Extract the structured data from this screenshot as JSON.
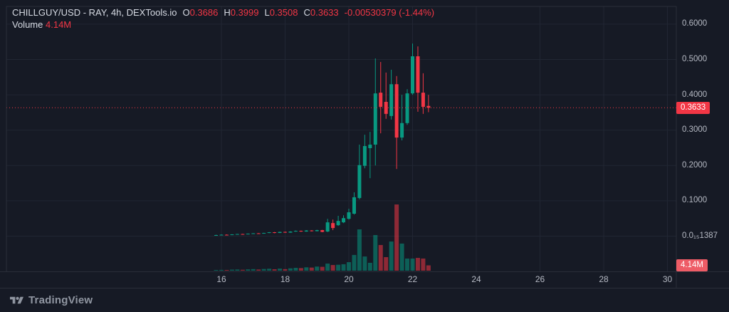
{
  "header": {
    "title": "CHILLGUY/USD - RAY, 4h, DEXTools.io",
    "ohlc": [
      {
        "label": "O",
        "value": "0.3686"
      },
      {
        "label": "H",
        "value": "0.3999"
      },
      {
        "label": "L",
        "value": "0.3508"
      },
      {
        "label": "C",
        "value": "0.3633"
      }
    ],
    "change": "-0.00530379 (-1.44%)",
    "volume_label": "Volume",
    "volume_value": "4.14M"
  },
  "badges": {
    "price": "0.3633",
    "volume": "4.14M"
  },
  "footer": {
    "brand": "TradingView",
    "logo_icon": "tradingview-logo"
  },
  "colors": {
    "background": "#161a25",
    "grid": "#212633",
    "border": "#2a2e39",
    "axis_text": "#b6bac4",
    "up": "#089981",
    "down": "#f23645",
    "dotted_line": "#f23645",
    "price_badge_bg": "#f23645",
    "volume_badge_bg": "#ee5c66"
  },
  "chart_data": {
    "type": "candlestick",
    "title": "CHILLGUY/USD - RAY, 4h, DEXTools.io",
    "x_unit": "day of month (November), 4h candles",
    "price_line": 0.3633,
    "last_volume_m": 4.14,
    "x_range_days": [
      15.8,
      30.3
    ],
    "y_range_price": [
      0,
      0.62
    ],
    "grid": "on",
    "price_axis_ticks": [
      {
        "value": 0.6,
        "label": "0.6000"
      },
      {
        "value": 0.5,
        "label": "0.5000"
      },
      {
        "value": 0.4,
        "label": "0.4000"
      },
      {
        "value": 0.3,
        "label": "0.3000"
      },
      {
        "value": 0.2,
        "label": "0.2000"
      },
      {
        "value": 0.1,
        "label": "0.1000"
      },
      {
        "value": 0.0,
        "label": "0.0₁₅1387"
      }
    ],
    "time_axis_ticks": [
      {
        "day": 16,
        "label": "16"
      },
      {
        "day": 18,
        "label": "18"
      },
      {
        "day": 20,
        "label": "20"
      },
      {
        "day": 22,
        "label": "22"
      },
      {
        "day": 24,
        "label": "24"
      },
      {
        "day": 26,
        "label": "26"
      },
      {
        "day": 28,
        "label": "28"
      },
      {
        "day": 30,
        "label": "30"
      }
    ],
    "candles_format": [
      "t_day",
      "open",
      "high",
      "low",
      "close",
      "volume_millions"
    ],
    "candles": [
      [
        15.833,
        0.002,
        0.004,
        0.001,
        0.003,
        0.3
      ],
      [
        16.0,
        0.003,
        0.005,
        0.002,
        0.004,
        0.6
      ],
      [
        16.167,
        0.004,
        0.005,
        0.0025,
        0.003,
        0.5
      ],
      [
        16.333,
        0.003,
        0.0055,
        0.0028,
        0.005,
        0.8
      ],
      [
        16.5,
        0.005,
        0.0065,
        0.0045,
        0.006,
        0.9
      ],
      [
        16.667,
        0.006,
        0.0068,
        0.0045,
        0.005,
        0.7
      ],
      [
        16.833,
        0.005,
        0.0075,
        0.0048,
        0.007,
        1.0
      ],
      [
        17.0,
        0.007,
        0.0085,
        0.0065,
        0.008,
        1.2
      ],
      [
        17.167,
        0.008,
        0.0088,
        0.0062,
        0.007,
        0.9
      ],
      [
        17.333,
        0.007,
        0.0095,
        0.0068,
        0.009,
        1.3
      ],
      [
        17.5,
        0.009,
        0.0115,
        0.0085,
        0.011,
        1.5
      ],
      [
        17.667,
        0.011,
        0.0118,
        0.0082,
        0.009,
        1.1
      ],
      [
        17.833,
        0.009,
        0.0125,
        0.0088,
        0.012,
        1.6
      ],
      [
        18.0,
        0.012,
        0.0128,
        0.0092,
        0.01,
        1.2
      ],
      [
        18.167,
        0.01,
        0.0138,
        0.0095,
        0.013,
        1.8
      ],
      [
        18.333,
        0.013,
        0.016,
        0.0125,
        0.015,
        2.2
      ],
      [
        18.5,
        0.015,
        0.0158,
        0.0122,
        0.013,
        2.0
      ],
      [
        18.667,
        0.013,
        0.017,
        0.0125,
        0.016,
        2.6
      ],
      [
        18.833,
        0.016,
        0.0168,
        0.0132,
        0.014,
        2.4
      ],
      [
        19.0,
        0.014,
        0.018,
        0.0135,
        0.017,
        3.2
      ],
      [
        19.167,
        0.017,
        0.0178,
        0.011,
        0.012,
        3.0
      ],
      [
        19.333,
        0.013,
        0.049,
        0.0115,
        0.039,
        5.5
      ],
      [
        19.5,
        0.037,
        0.047,
        0.017,
        0.023,
        4.4
      ],
      [
        19.667,
        0.031,
        0.0575,
        0.029,
        0.043,
        4.6
      ],
      [
        19.833,
        0.039,
        0.059,
        0.037,
        0.051,
        5.0
      ],
      [
        20.0,
        0.049,
        0.0776,
        0.047,
        0.0675,
        6.6
      ],
      [
        20.167,
        0.0635,
        0.124,
        0.061,
        0.11,
        12.2
      ],
      [
        20.333,
        0.108,
        0.259,
        0.104,
        0.201,
        32.0
      ],
      [
        20.5,
        0.199,
        0.287,
        0.192,
        0.255,
        11.0
      ],
      [
        20.667,
        0.249,
        0.295,
        0.164,
        0.259,
        6.1
      ],
      [
        20.833,
        0.259,
        0.503,
        0.2,
        0.404,
        27.6
      ],
      [
        21.0,
        0.406,
        0.493,
        0.291,
        0.366,
        19.9
      ],
      [
        21.167,
        0.38,
        0.463,
        0.332,
        0.346,
        10.5
      ],
      [
        21.333,
        0.34,
        0.471,
        0.33,
        0.43,
        22.6
      ],
      [
        21.5,
        0.43,
        0.453,
        0.19,
        0.279,
        51.3
      ],
      [
        21.667,
        0.279,
        0.4,
        0.271,
        0.32,
        21.0
      ],
      [
        21.833,
        0.32,
        0.416,
        0.315,
        0.404,
        9.4
      ],
      [
        22.0,
        0.404,
        0.545,
        0.4,
        0.509,
        9.4
      ],
      [
        22.167,
        0.509,
        0.537,
        0.352,
        0.406,
        9.9
      ],
      [
        22.333,
        0.406,
        0.461,
        0.346,
        0.366,
        9.4
      ],
      [
        22.5,
        0.3686,
        0.3999,
        0.3508,
        0.3633,
        4.14
      ]
    ]
  }
}
